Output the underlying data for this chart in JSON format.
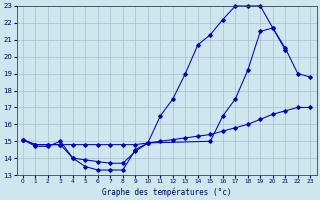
{
  "title": "Graphe des températures (°c)",
  "bg_color": "#cce8ee",
  "grid_color": "#aabbcc",
  "line_color": "#0000bb",
  "xlim": [
    -0.5,
    23.5
  ],
  "ylim": [
    13,
    23
  ],
  "xticks": [
    0,
    1,
    2,
    3,
    4,
    5,
    6,
    7,
    8,
    9,
    10,
    11,
    12,
    13,
    14,
    15,
    16,
    17,
    18,
    19,
    20,
    21,
    22,
    23
  ],
  "yticks": [
    13,
    14,
    15,
    16,
    17,
    18,
    19,
    20,
    21,
    22,
    23
  ],
  "series1_x": [
    0,
    1,
    2,
    3,
    4,
    5,
    6,
    7,
    8,
    9,
    10,
    11,
    12,
    13,
    14,
    15,
    16,
    17,
    18,
    19,
    20,
    21
  ],
  "series1_y": [
    15.1,
    14.7,
    14.7,
    15.0,
    14.0,
    13.5,
    13.3,
    13.3,
    13.3,
    14.5,
    14.9,
    16.5,
    17.5,
    19.0,
    20.7,
    21.3,
    22.2,
    23.0,
    23.0,
    23.0,
    21.7,
    20.4
  ],
  "series2_x": [
    0,
    1,
    2,
    3,
    4,
    5,
    6,
    7,
    8,
    9,
    10,
    11,
    12,
    13,
    14,
    15,
    16,
    17,
    18,
    19,
    20,
    21,
    22,
    23
  ],
  "series2_y": [
    15.1,
    14.8,
    14.8,
    14.8,
    14.8,
    14.8,
    14.8,
    14.8,
    14.8,
    14.8,
    14.9,
    15.0,
    15.1,
    15.2,
    15.3,
    15.4,
    15.6,
    15.8,
    16.0,
    16.3,
    16.6,
    16.8,
    17.0,
    17.0
  ],
  "series3_x": [
    0,
    1,
    2,
    3,
    4,
    5,
    6,
    7,
    8,
    9,
    10,
    15,
    16,
    17,
    18,
    19,
    20,
    21,
    22,
    23
  ],
  "series3_y": [
    15.1,
    14.8,
    14.8,
    14.8,
    14.0,
    13.9,
    13.8,
    13.7,
    13.7,
    14.4,
    14.9,
    15.0,
    16.5,
    17.5,
    19.2,
    21.5,
    21.7,
    20.5,
    19.0,
    18.8
  ]
}
